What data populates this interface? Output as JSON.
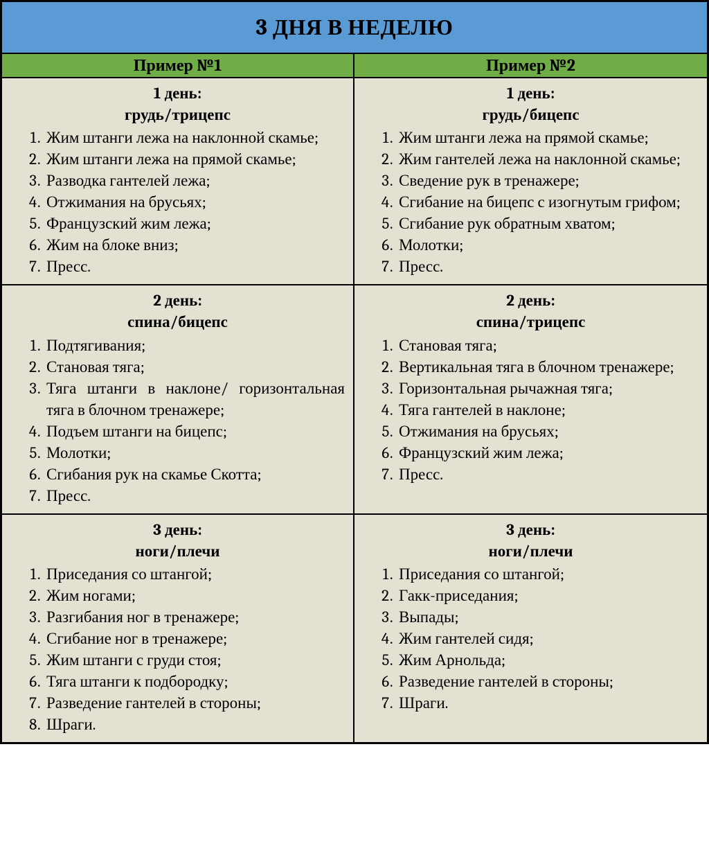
{
  "colors": {
    "title_bg": "#5b9bd5",
    "header_bg": "#70ad47",
    "cell_bg": "#e3e1d2",
    "border": "#000000",
    "text": "#000000"
  },
  "fontsizes": {
    "title": 32,
    "column_header": 24,
    "body": 23
  },
  "title": "3 ДНЯ В НЕДЕЛЮ",
  "columns": [
    {
      "header": "Пример №1"
    },
    {
      "header": "Пример №2"
    }
  ],
  "days": [
    {
      "left": {
        "title": "1 день:",
        "subtitle": "грудь/трицепс",
        "justify": true,
        "items": [
          "Жим штанги лежа на наклонной скамье;",
          "Жим штанги лежа на прямой скамье;",
          "Разводка гантелей лежа;",
          "Отжимания на брусьях;",
          "Французский жим лежа;",
          "Жим на блоке вниз;",
          "Пресс."
        ]
      },
      "right": {
        "title": "1 день:",
        "subtitle": "грудь/бицепс",
        "justify": false,
        "items": [
          "Жим штанги лежа на прямой скамье;",
          "Жим гантелей лежа на наклонной скамье;",
          "Сведение рук в тренажере;",
          "Сгибание на бицепс с изогнутым грифом;",
          "Сгибание рук обратным хватом;",
          "Молотки;",
          "Пресс."
        ]
      }
    },
    {
      "left": {
        "title": "2 день:",
        "subtitle": "спина/бицепс",
        "justify": true,
        "items": [
          "Подтягивания;",
          "Становая тяга;",
          "Тяга штанги в наклоне/ горизонтальная тяга в блочном тренажере;",
          "Подъем штанги на бицепс;",
          "Молотки;",
          "Сгибания рук на скамье Скотта;",
          "Пресс."
        ]
      },
      "right": {
        "title": "2 день:",
        "subtitle": "спина/трицепс",
        "justify": false,
        "items": [
          "Становая тяга;",
          "Вертикальная тяга в блочном тренажере;",
          "Горизонтальная рычажная тяга;",
          "Тяга гантелей в наклоне;",
          "Отжимания на брусьях;",
          "Французский жим лежа;",
          "Пресс."
        ]
      }
    },
    {
      "left": {
        "title": "3 день:",
        "subtitle": "ноги/плечи",
        "justify": false,
        "items": [
          "Приседания со штангой;",
          "Жим ногами;",
          "Разгибания ног в тренажере;",
          "Сгибание ног в тренажере;",
          "Жим штанги с груди стоя;",
          "Тяга штанги к подбородку;",
          "Разведение гантелей в стороны;",
          "Шраги."
        ]
      },
      "right": {
        "title": "3 день:",
        "subtitle": "ноги/плечи",
        "justify": false,
        "items": [
          "Приседания со штангой;",
          "Гакк-приседания;",
          "Выпады;",
          "Жим гантелей сидя;",
          "Жим Арнольда;",
          "Разведение гантелей в стороны;",
          "Шраги."
        ]
      }
    }
  ]
}
